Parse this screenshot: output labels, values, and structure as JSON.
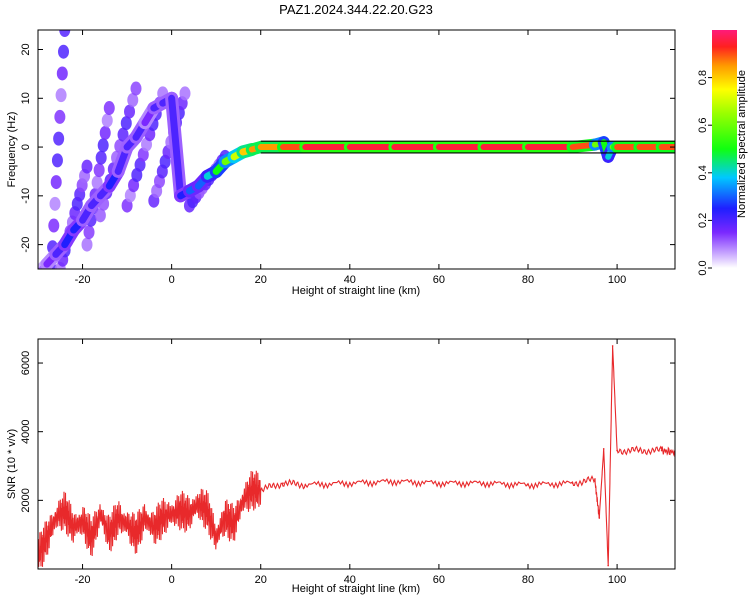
{
  "title": "PAZ1.2024.344.22.20.G23",
  "chart_data": [
    {
      "type": "heatmap",
      "xlabel": "Height of straight line (km)",
      "ylabel": "Frequency (Hz)",
      "xlim": [
        -30,
        113
      ],
      "ylim": [
        -25,
        24
      ],
      "xticks": [
        "-20",
        "0",
        "20",
        "40",
        "60",
        "80",
        "100"
      ],
      "xtick_values": [
        -20,
        0,
        20,
        40,
        60,
        80,
        100
      ],
      "yticks": [
        "20",
        "10",
        "0",
        "-10",
        "-20"
      ],
      "ytick_values": [
        20,
        10,
        0,
        -10,
        -20
      ],
      "colorbar": {
        "label": "Normalized spectral amplitude",
        "range": [
          0,
          1
        ],
        "ticks": [
          "0.0",
          "0.2",
          "0.4",
          "0.6",
          "0.8"
        ],
        "tick_values": [
          0.0,
          0.2,
          0.4,
          0.6,
          0.8
        ]
      },
      "ridge_line": {
        "x": [
          -30,
          -28,
          -26,
          -24,
          -22,
          -20,
          -18,
          -16,
          -14,
          -12,
          -10,
          -8,
          -6,
          -4,
          -2,
          0,
          2,
          4,
          6,
          8,
          10,
          12,
          14,
          16,
          18,
          20,
          25,
          30,
          40,
          50,
          60,
          70,
          80,
          90,
          95,
          97,
          98,
          99,
          100,
          105,
          110,
          113
        ],
        "y": [
          -26,
          -24,
          -22,
          -20,
          -17,
          -15,
          -12,
          -10,
          -8,
          -5,
          0,
          2,
          5,
          8,
          9,
          10,
          -10,
          -9,
          -8,
          -6,
          -5,
          -3,
          -2,
          -1,
          -0.5,
          0,
          0,
          0,
          0,
          0,
          0,
          0,
          0,
          0,
          0.5,
          1,
          -2,
          0,
          0,
          0,
          0,
          0
        ],
        "amplitude": [
          0.1,
          0.15,
          0.2,
          0.25,
          0.25,
          0.2,
          0.2,
          0.2,
          0.25,
          0.2,
          0.2,
          0.2,
          0.15,
          0.2,
          0.2,
          0.2,
          0.25,
          0.3,
          0.3,
          0.4,
          0.5,
          0.6,
          0.7,
          0.8,
          0.85,
          0.85,
          0.9,
          0.95,
          0.95,
          0.95,
          0.95,
          0.95,
          0.95,
          0.9,
          0.6,
          0.5,
          0.4,
          0.6,
          0.9,
          0.9,
          0.9,
          0.9
        ]
      },
      "striations": [
        {
          "x0": -27,
          "y0": -25,
          "x1": -24,
          "y1": 24
        },
        {
          "x0": -25,
          "y0": -25,
          "x1": -19,
          "y1": -4
        },
        {
          "x0": -19,
          "y0": -20,
          "x1": -14,
          "y1": 8
        },
        {
          "x0": -16,
          "y0": -14,
          "x1": -8,
          "y1": 12
        },
        {
          "x0": -10,
          "y0": -12,
          "x1": -2,
          "y1": 11
        },
        {
          "x0": -4,
          "y0": -11,
          "x1": 3,
          "y1": 11
        },
        {
          "x0": 4,
          "y0": -12,
          "x1": 12,
          "y1": -2
        }
      ]
    },
    {
      "type": "line",
      "xlabel": "Height of straight line (km)",
      "ylabel": "SNR (10 * v/v)",
      "xlim": [
        -30,
        113
      ],
      "ylim": [
        0,
        6700
      ],
      "xticks": [
        "-20",
        "0",
        "20",
        "40",
        "60",
        "80",
        "100"
      ],
      "xtick_values": [
        -20,
        0,
        20,
        40,
        60,
        80,
        100
      ],
      "yticks": [
        "2000",
        "4000",
        "6000"
      ],
      "ytick_values": [
        2000,
        4000,
        6000
      ],
      "color": "#e8292b",
      "series": [
        {
          "x": [
            -30,
            -28,
            -26,
            -24,
            -22,
            -20,
            -18,
            -16,
            -14,
            -12,
            -10,
            -8,
            -6,
            -4,
            -2,
            0,
            2,
            4,
            6,
            8,
            10,
            12,
            14,
            16,
            18,
            20,
            25,
            30,
            40,
            50,
            60,
            70,
            80,
            90,
            95,
            96,
            97,
            98,
            99,
            100,
            105,
            110,
            113
          ],
          "values": [
            400,
            900,
            1500,
            1700,
            1200,
            1400,
            900,
            1600,
            1000,
            1500,
            1300,
            1000,
            1500,
            1200,
            1500,
            1600,
            1700,
            1600,
            1900,
            1700,
            900,
            1500,
            1300,
            2000,
            2300,
            2300,
            2500,
            2450,
            2500,
            2550,
            2500,
            2500,
            2450,
            2500,
            2600,
            1500,
            3500,
            100,
            6500,
            3450,
            3450,
            3450,
            3400
          ]
        }
      ]
    }
  ]
}
